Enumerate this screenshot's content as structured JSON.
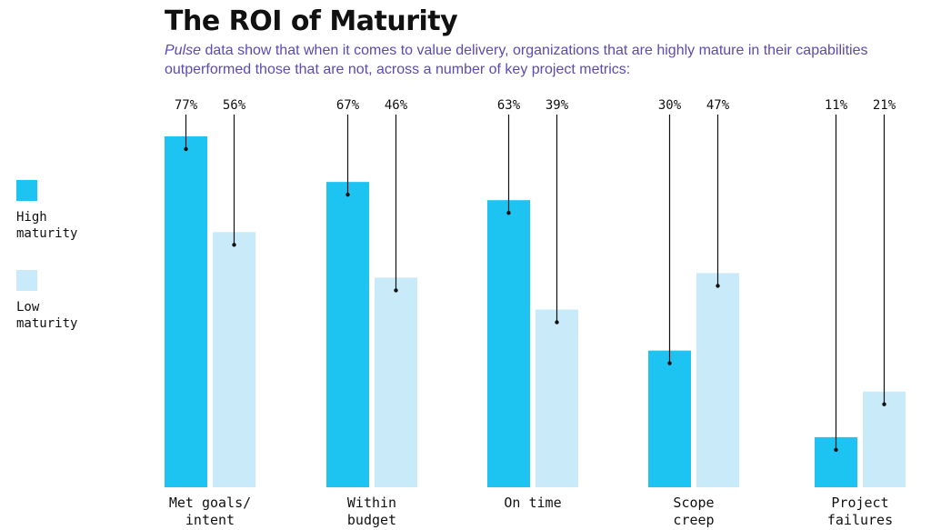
{
  "header": {
    "title": "The ROI of Maturity",
    "subtitle_em": "Pulse",
    "subtitle_rest": " data show that when it comes to value delivery, organizations that are highly mature in their capabilities outperformed those that are not, across a number of key project metrics:"
  },
  "legend": {
    "high_line1": "High",
    "high_line2": "maturity",
    "low_line1": "Low",
    "low_line2": "maturity"
  },
  "colors": {
    "high": "#1ec4f1",
    "low": "#c9eaf9",
    "accent": "#5b4bb3"
  },
  "chart_data": {
    "type": "bar",
    "categories": [
      [
        "Met goals/",
        "intent"
      ],
      [
        "Within",
        "budget"
      ],
      [
        "On time"
      ],
      [
        "Scope",
        "creep"
      ],
      [
        "Project",
        "failures"
      ]
    ],
    "series": [
      {
        "name": "High maturity",
        "values": [
          77,
          67,
          63,
          30,
          11
        ],
        "labels": [
          "77%",
          "67%",
          "63%",
          "30%",
          "11%"
        ]
      },
      {
        "name": "Low maturity",
        "values": [
          56,
          46,
          39,
          47,
          21
        ],
        "labels": [
          "56%",
          "46%",
          "39%",
          "47%",
          "21%"
        ]
      }
    ],
    "ylim": [
      0,
      100
    ],
    "grid": false,
    "legend_position": "left"
  }
}
